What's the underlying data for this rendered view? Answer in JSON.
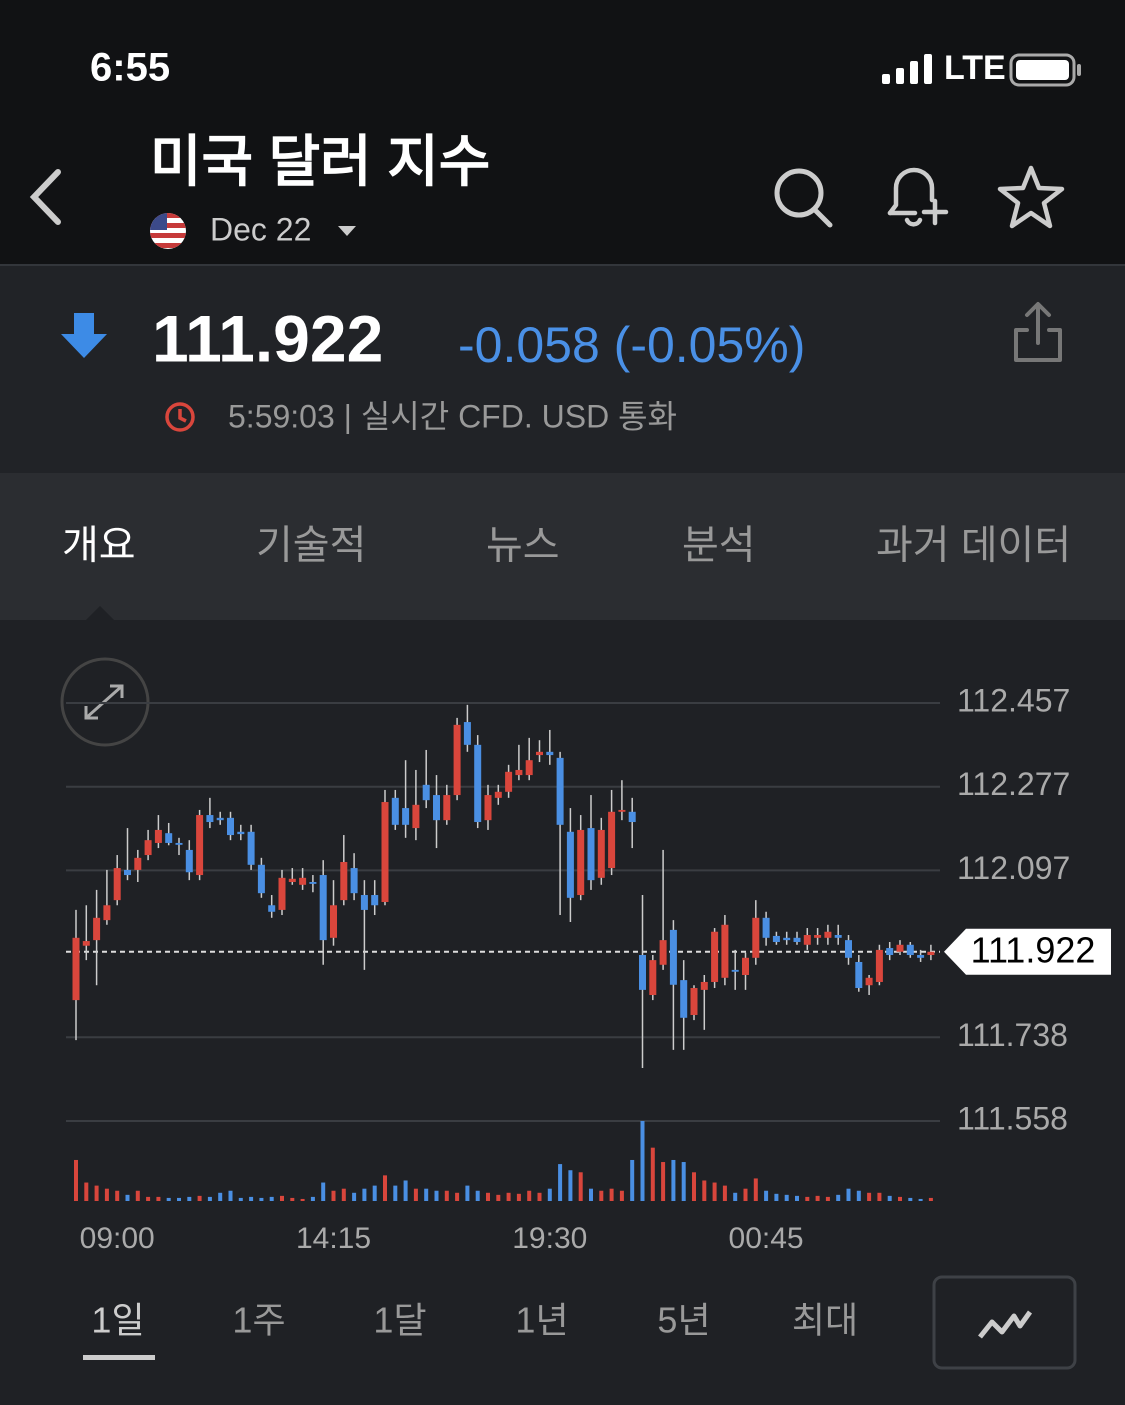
{
  "status_bar": {
    "time": "6:55",
    "network": "LTE"
  },
  "header": {
    "title": "미국 달러 지수",
    "contract": "Dec 22"
  },
  "quote": {
    "price": "111.922",
    "change": "-0.058 (-0.05%)",
    "timestamp": "5:59:03 | 실시간 CFD. USD 통화"
  },
  "tabs": [
    "개요",
    "기술적",
    "뉴스",
    "분석",
    "과거 데이터"
  ],
  "chart_data": {
    "type": "candlestick",
    "categories": [
      null,
      null,
      null,
      null,
      "09:00",
      null,
      null,
      null,
      null,
      null,
      null,
      null,
      null,
      null,
      null,
      null,
      null,
      null,
      null,
      null,
      null,
      null,
      null,
      null,
      null,
      "14:15",
      null,
      null,
      null,
      null,
      null,
      null,
      null,
      null,
      null,
      null,
      null,
      null,
      null,
      null,
      null,
      null,
      null,
      null,
      null,
      null,
      "19:30",
      null,
      null,
      null,
      null,
      null,
      null,
      null,
      null,
      null,
      null,
      null,
      null,
      null,
      null,
      null,
      null,
      null,
      null,
      null,
      null,
      "00:45",
      null,
      null,
      null,
      null,
      null,
      null,
      null,
      null,
      null,
      null,
      null,
      null,
      null,
      null,
      null,
      null
    ],
    "open": [
      111.818,
      111.935,
      111.947,
      111.99,
      112.033,
      112.098,
      112.098,
      112.13,
      112.156,
      112.177,
      112.156,
      112.141,
      112.087,
      112.216,
      112.21,
      112.21,
      112.18,
      112.18,
      112.109,
      112.022,
      112.012,
      112.072,
      112.066,
      112.072,
      112.087,
      111.952,
      112.033,
      112.102,
      112.044,
      112.044,
      112.029,
      112.253,
      112.231,
      112.188,
      112.281,
      112.259,
      112.205,
      112.259,
      112.416,
      112.367,
      112.205,
      112.253,
      112.266,
      112.302,
      112.302,
      112.345,
      112.352,
      112.339,
      112.18,
      112.044,
      112.188,
      112.081,
      112.102,
      112.223,
      112.223,
      111.915,
      111.829,
      111.894,
      111.969,
      111.861,
      111.786,
      111.84,
      111.857,
      111.866,
      111.883,
      111.872,
      111.909,
      111.995,
      111.956,
      111.952,
      111.952,
      111.937,
      111.952,
      111.952,
      111.958,
      111.947,
      111.9,
      111.85,
      111.857,
      111.93,
      111.922,
      111.937,
      111.915,
      111.915
    ],
    "high": [
      112.012,
      112.022,
      112.055,
      112.098,
      112.13,
      112.188,
      112.141,
      112.184,
      112.216,
      112.199,
      112.167,
      112.162,
      112.227,
      112.253,
      112.223,
      112.223,
      112.195,
      112.195,
      112.124,
      112.044,
      112.098,
      112.102,
      112.102,
      112.087,
      112.119,
      112.076,
      112.173,
      112.134,
      112.076,
      112.076,
      112.27,
      112.27,
      112.334,
      112.313,
      112.356,
      112.302,
      112.281,
      112.425,
      112.453,
      112.388,
      112.281,
      112.281,
      112.324,
      112.367,
      112.382,
      112.377,
      112.399,
      112.352,
      112.231,
      112.216,
      112.259,
      112.21,
      112.27,
      112.291,
      112.253,
      112.044,
      111.915,
      112.141,
      111.99,
      111.904,
      111.85,
      111.872,
      111.973,
      112.001,
      111.926,
      111.92,
      112.033,
      112.008,
      111.965,
      111.965,
      111.965,
      111.973,
      111.973,
      111.98,
      111.98,
      111.958,
      111.915,
      111.872,
      111.937,
      111.943,
      111.947,
      111.943,
      111.926,
      111.937
    ],
    "low": [
      111.732,
      111.904,
      111.85,
      111.98,
      112.022,
      112.076,
      112.072,
      112.119,
      112.145,
      112.151,
      112.13,
      112.076,
      112.076,
      112.188,
      112.195,
      112.162,
      112.162,
      112.098,
      112.038,
      111.995,
      112.001,
      112.066,
      112.055,
      112.05,
      111.894,
      111.935,
      112.022,
      112.033,
      111.883,
      112.001,
      112.022,
      112.184,
      112.167,
      112.162,
      112.231,
      112.145,
      112.195,
      112.248,
      112.352,
      112.188,
      112.184,
      112.238,
      112.253,
      112.291,
      112.291,
      112.33,
      112.324,
      112.001,
      111.986,
      112.033,
      112.055,
      112.066,
      112.087,
      112.205,
      112.145,
      111.672,
      111.818,
      111.883,
      111.711,
      111.711,
      111.775,
      111.754,
      111.844,
      111.85,
      111.84,
      111.84,
      111.894,
      111.935,
      111.937,
      111.937,
      111.937,
      111.926,
      111.937,
      111.937,
      111.937,
      111.894,
      111.836,
      111.829,
      111.85,
      111.904,
      111.915,
      111.909,
      111.9,
      111.904
    ],
    "close": [
      111.952,
      111.945,
      111.995,
      112.022,
      112.102,
      112.087,
      112.124,
      112.162,
      112.184,
      112.156,
      112.152,
      112.093,
      112.216,
      112.201,
      112.205,
      112.173,
      112.175,
      112.109,
      112.048,
      112.008,
      112.081,
      112.079,
      112.081,
      112.068,
      111.947,
      112.022,
      112.115,
      112.048,
      112.012,
      112.022,
      112.244,
      112.195,
      112.195,
      112.238,
      112.248,
      112.205,
      112.259,
      112.41,
      112.367,
      112.201,
      112.259,
      112.266,
      112.309,
      112.313,
      112.334,
      112.352,
      112.345,
      112.195,
      112.038,
      112.184,
      112.076,
      112.184,
      112.223,
      112.227,
      112.201,
      111.84,
      111.904,
      111.947,
      111.851,
      111.78,
      111.844,
      111.857,
      111.965,
      111.98,
      111.879,
      111.909,
      111.995,
      111.952,
      111.943,
      111.947,
      111.943,
      111.958,
      111.958,
      111.965,
      111.952,
      111.909,
      111.844,
      111.866,
      111.926,
      111.915,
      111.937,
      111.915,
      111.909,
      111.922
    ],
    "volume": [
      40,
      18,
      15,
      12,
      10,
      6,
      10,
      4,
      4,
      3,
      3,
      4,
      5,
      4,
      8,
      10,
      3,
      4,
      3,
      4,
      5,
      3,
      2,
      4,
      18,
      10,
      12,
      8,
      12,
      15,
      25,
      15,
      20,
      12,
      12,
      10,
      10,
      8,
      15,
      10,
      8,
      6,
      8,
      7,
      10,
      8,
      12,
      36,
      30,
      28,
      12,
      10,
      12,
      10,
      40,
      78,
      52,
      38,
      40,
      38,
      28,
      20,
      18,
      15,
      8,
      12,
      22,
      10,
      7,
      6,
      5,
      4,
      5,
      4,
      6,
      12,
      10,
      8,
      8,
      5,
      4,
      3,
      2,
      3
    ],
    "up_color": "#d9463c",
    "down_color": "#4a8fe3",
    "ylim": [
      111.558,
      112.457
    ],
    "yticks": [
      112.457,
      112.277,
      112.097,
      111.738,
      111.558
    ],
    "last_price": 111.922,
    "grid": true
  },
  "ranges": [
    "1일",
    "1주",
    "1달",
    "1년",
    "5년",
    "최대"
  ]
}
